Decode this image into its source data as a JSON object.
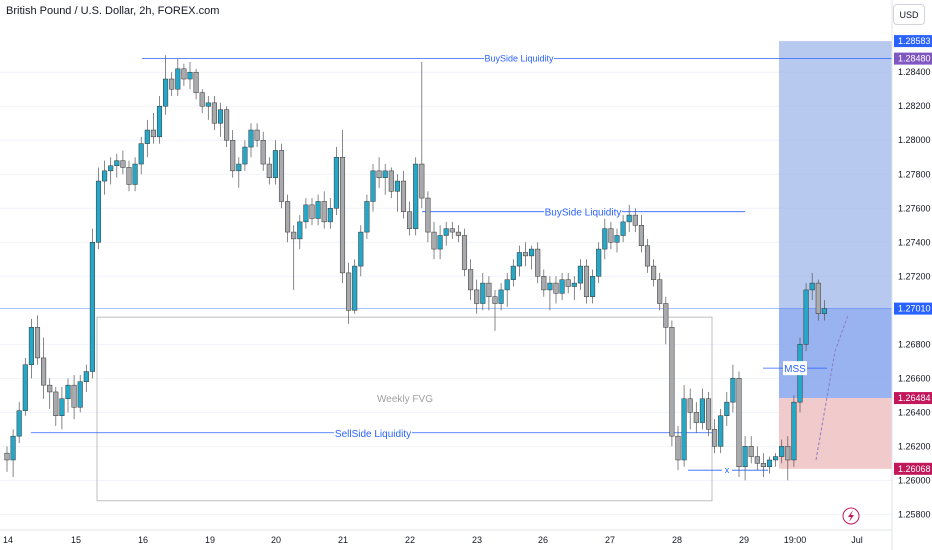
{
  "header": {
    "title": "British Pound / U.S. Dollar, 2h, FOREX.com",
    "currency_button": "USD"
  },
  "colors": {
    "up": "#26a7c7",
    "down": "#a9aaad",
    "wick": "#555555",
    "annotation": "#2962ff",
    "target_zone": "#9fb7ea",
    "stop_zone": "#efc4c6",
    "gap_box": "#b0b0b0"
  },
  "chart_data": {
    "type": "candlestick",
    "ylim": [
      1.2572,
      1.2866
    ],
    "x_ticks": [
      "14",
      "15",
      "16",
      "19",
      "20",
      "21",
      "22",
      "23",
      "26",
      "27",
      "28",
      "29",
      "19:00",
      "Jul"
    ],
    "y_ticks": [
      "1.28400",
      "1.28200",
      "1.28000",
      "1.27800",
      "1.27600",
      "1.27400",
      "1.27200",
      "1.26800",
      "1.26600",
      "1.26400",
      "1.26200",
      "1.26000",
      "1.25800"
    ],
    "price_labels": [
      {
        "text": "1.28583",
        "value": 1.28583,
        "color": "#2962ff"
      },
      {
        "text": "1.28480",
        "value": 1.2848,
        "color": "#7e57c2"
      },
      {
        "text": "1.27010",
        "value": 1.2701,
        "color": "#2962ff"
      },
      {
        "text": "1.26484",
        "value": 1.26484,
        "color": "#c2185b"
      },
      {
        "text": "1.26068",
        "value": 1.26068,
        "color": "#c2185b"
      }
    ],
    "annotations": [
      {
        "text": "BuySide Liquidity",
        "level": 1.2848
      },
      {
        "text": "BuySide Liquidity",
        "level": 1.2758
      },
      {
        "text": "SellSide Liquidity",
        "level": 1.2628
      },
      {
        "text": "Weekly FVG",
        "low": 1.2588,
        "high": 1.2696
      },
      {
        "text": "MSS",
        "level": 1.2666
      },
      {
        "text": "x",
        "level": 1.2606
      }
    ],
    "position": {
      "entry": 1.26484,
      "target": 1.28583,
      "stop": 1.26068,
      "current": 1.2701
    },
    "candles": [
      [
        1.2616,
        1.262,
        1.2605,
        1.2612
      ],
      [
        1.2612,
        1.263,
        1.2602,
        1.2626
      ],
      [
        1.2626,
        1.2646,
        1.2622,
        1.2641
      ],
      [
        1.2641,
        1.2672,
        1.2638,
        1.2668
      ],
      [
        1.2668,
        1.2695,
        1.266,
        1.269
      ],
      [
        1.269,
        1.2697,
        1.2668,
        1.2672
      ],
      [
        1.2672,
        1.2684,
        1.2648,
        1.2656
      ],
      [
        1.2656,
        1.266,
        1.2642,
        1.2652
      ],
      [
        1.2652,
        1.2655,
        1.2632,
        1.2638
      ],
      [
        1.2638,
        1.2655,
        1.263,
        1.2648
      ],
      [
        1.2648,
        1.266,
        1.264,
        1.2656
      ],
      [
        1.2656,
        1.2662,
        1.2636,
        1.2643
      ],
      [
        1.2643,
        1.2662,
        1.264,
        1.2658
      ],
      [
        1.2658,
        1.2668,
        1.2652,
        1.2664
      ],
      [
        1.2664,
        1.2748,
        1.266,
        1.274
      ],
      [
        1.274,
        1.2784,
        1.2736,
        1.2776
      ],
      [
        1.2776,
        1.2788,
        1.2768,
        1.2782
      ],
      [
        1.2782,
        1.279,
        1.2774,
        1.2785
      ],
      [
        1.2785,
        1.2792,
        1.2778,
        1.2788
      ],
      [
        1.2788,
        1.2794,
        1.278,
        1.2784
      ],
      [
        1.2784,
        1.2788,
        1.277,
        1.2774
      ],
      [
        1.2774,
        1.279,
        1.277,
        1.2786
      ],
      [
        1.2786,
        1.2802,
        1.278,
        1.2798
      ],
      [
        1.2798,
        1.2812,
        1.279,
        1.2806
      ],
      [
        1.2806,
        1.2816,
        1.2798,
        1.2802
      ],
      [
        1.2802,
        1.2826,
        1.2798,
        1.282
      ],
      [
        1.282,
        1.285,
        1.2815,
        1.2836
      ],
      [
        1.2836,
        1.284,
        1.2826,
        1.283
      ],
      [
        1.283,
        1.2848,
        1.2826,
        1.2842
      ],
      [
        1.2842,
        1.2845,
        1.2832,
        1.2836
      ],
      [
        1.2836,
        1.2846,
        1.283,
        1.284
      ],
      [
        1.284,
        1.2842,
        1.2824,
        1.2828
      ],
      [
        1.2828,
        1.283,
        1.2816,
        1.282
      ],
      [
        1.282,
        1.2826,
        1.2812,
        1.2822
      ],
      [
        1.2822,
        1.2826,
        1.2806,
        1.281
      ],
      [
        1.281,
        1.2822,
        1.2802,
        1.2818
      ],
      [
        1.2818,
        1.282,
        1.2796,
        1.28
      ],
      [
        1.28,
        1.2806,
        1.2778,
        1.2782
      ],
      [
        1.2782,
        1.279,
        1.2772,
        1.2786
      ],
      [
        1.2786,
        1.28,
        1.2782,
        1.2796
      ],
      [
        1.2796,
        1.281,
        1.279,
        1.2806
      ],
      [
        1.2806,
        1.281,
        1.2796,
        1.28
      ],
      [
        1.28,
        1.2805,
        1.2782,
        1.2786
      ],
      [
        1.2786,
        1.279,
        1.2774,
        1.2778
      ],
      [
        1.2778,
        1.28,
        1.2774,
        1.2794
      ],
      [
        1.2794,
        1.2798,
        1.276,
        1.2764
      ],
      [
        1.2764,
        1.2768,
        1.274,
        1.2746
      ],
      [
        1.2746,
        1.275,
        1.2712,
        1.2742
      ],
      [
        1.2742,
        1.2756,
        1.2736,
        1.2752
      ],
      [
        1.2752,
        1.2766,
        1.2748,
        1.2762
      ],
      [
        1.2762,
        1.2766,
        1.275,
        1.2754
      ],
      [
        1.2754,
        1.2768,
        1.275,
        1.2764
      ],
      [
        1.2764,
        1.277,
        1.2748,
        1.2752
      ],
      [
        1.2752,
        1.2766,
        1.2748,
        1.276
      ],
      [
        1.276,
        1.2796,
        1.2756,
        1.279
      ],
      [
        1.279,
        1.2806,
        1.2716,
        1.2722
      ],
      [
        1.2722,
        1.2728,
        1.2692,
        1.27
      ],
      [
        1.27,
        1.273,
        1.2698,
        1.2726
      ],
      [
        1.2726,
        1.275,
        1.272,
        1.2746
      ],
      [
        1.2746,
        1.2768,
        1.2742,
        1.2764
      ],
      [
        1.2764,
        1.2786,
        1.2758,
        1.2782
      ],
      [
        1.2782,
        1.279,
        1.2772,
        1.2778
      ],
      [
        1.2778,
        1.2786,
        1.2768,
        1.2782
      ],
      [
        1.2782,
        1.2784,
        1.2766,
        1.277
      ],
      [
        1.277,
        1.278,
        1.2758,
        1.2776
      ],
      [
        1.2776,
        1.2782,
        1.2754,
        1.2758
      ],
      [
        1.2758,
        1.2764,
        1.2744,
        1.2748
      ],
      [
        1.2748,
        1.279,
        1.2744,
        1.2786
      ],
      [
        1.2786,
        1.2846,
        1.276,
        1.2766
      ],
      [
        1.2766,
        1.277,
        1.274,
        1.2746
      ],
      [
        1.2746,
        1.2752,
        1.273,
        1.2736
      ],
      [
        1.2736,
        1.275,
        1.273,
        1.2744
      ],
      [
        1.2744,
        1.2752,
        1.2738,
        1.2748
      ],
      [
        1.2748,
        1.2752,
        1.2742,
        1.2746
      ],
      [
        1.2746,
        1.275,
        1.274,
        1.2744
      ],
      [
        1.2744,
        1.2748,
        1.272,
        1.2724
      ],
      [
        1.2724,
        1.273,
        1.2706,
        1.2712
      ],
      [
        1.2712,
        1.2718,
        1.2698,
        1.2704
      ],
      [
        1.2704,
        1.2722,
        1.27,
        1.2716
      ],
      [
        1.2716,
        1.272,
        1.27,
        1.2708
      ],
      [
        1.2708,
        1.2712,
        1.2688,
        1.2704
      ],
      [
        1.2704,
        1.2716,
        1.27,
        1.2712
      ],
      [
        1.2712,
        1.2722,
        1.2702,
        1.2718
      ],
      [
        1.2718,
        1.273,
        1.2714,
        1.2726
      ],
      [
        1.2726,
        1.2738,
        1.272,
        1.2734
      ],
      [
        1.2734,
        1.274,
        1.2726,
        1.2732
      ],
      [
        1.2732,
        1.2738,
        1.2724,
        1.2736
      ],
      [
        1.2736,
        1.274,
        1.2716,
        1.272
      ],
      [
        1.272,
        1.2724,
        1.2708,
        1.2712
      ],
      [
        1.2712,
        1.272,
        1.27,
        1.2716
      ],
      [
        1.2716,
        1.272,
        1.2704,
        1.271
      ],
      [
        1.271,
        1.2722,
        1.2706,
        1.2718
      ],
      [
        1.2718,
        1.2722,
        1.271,
        1.2714
      ],
      [
        1.2714,
        1.272,
        1.2706,
        1.2716
      ],
      [
        1.2716,
        1.273,
        1.2712,
        1.2726
      ],
      [
        1.2726,
        1.273,
        1.2704,
        1.2708
      ],
      [
        1.2708,
        1.2724,
        1.2704,
        1.272
      ],
      [
        1.272,
        1.274,
        1.2716,
        1.2736
      ],
      [
        1.2736,
        1.2756,
        1.273,
        1.2748
      ],
      [
        1.2748,
        1.2752,
        1.2736,
        1.274
      ],
      [
        1.274,
        1.2748,
        1.2734,
        1.2744
      ],
      [
        1.2744,
        1.2756,
        1.274,
        1.2752
      ],
      [
        1.2752,
        1.2762,
        1.2746,
        1.2756
      ],
      [
        1.2756,
        1.276,
        1.2746,
        1.275
      ],
      [
        1.275,
        1.2756,
        1.2734,
        1.2738
      ],
      [
        1.2738,
        1.2742,
        1.2722,
        1.2726
      ],
      [
        1.2726,
        1.273,
        1.2714,
        1.2718
      ],
      [
        1.2718,
        1.2722,
        1.27,
        1.2704
      ],
      [
        1.2704,
        1.2708,
        1.268,
        1.269
      ],
      [
        1.269,
        1.2694,
        1.262,
        1.2626
      ],
      [
        1.2626,
        1.2632,
        1.2606,
        1.2612
      ],
      [
        1.2612,
        1.2656,
        1.2608,
        1.2648
      ],
      [
        1.2648,
        1.2654,
        1.263,
        1.264
      ],
      [
        1.264,
        1.2646,
        1.2628,
        1.2634
      ],
      [
        1.2634,
        1.2654,
        1.263,
        1.2648
      ],
      [
        1.2648,
        1.2652,
        1.2626,
        1.263
      ],
      [
        1.263,
        1.2636,
        1.2616,
        1.262
      ],
      [
        1.262,
        1.2642,
        1.2616,
        1.2638
      ],
      [
        1.2638,
        1.2652,
        1.2632,
        1.2646
      ],
      [
        1.2646,
        1.2668,
        1.264,
        1.266
      ],
      [
        1.266,
        1.2664,
        1.2602,
        1.2608
      ],
      [
        1.2608,
        1.2626,
        1.26,
        1.262
      ],
      [
        1.262,
        1.2626,
        1.261,
        1.2614
      ],
      [
        1.2614,
        1.262,
        1.2606,
        1.261
      ],
      [
        1.261,
        1.2616,
        1.2602,
        1.2608
      ],
      [
        1.2608,
        1.2614,
        1.2604,
        1.2612
      ],
      [
        1.2612,
        1.2616,
        1.2608,
        1.2614
      ],
      [
        1.2614,
        1.2624,
        1.261,
        1.262
      ],
      [
        1.262,
        1.2626,
        1.26,
        1.2612
      ],
      [
        1.2612,
        1.265,
        1.2608,
        1.2646
      ],
      [
        1.2646,
        1.2684,
        1.264,
        1.268
      ],
      [
        1.268,
        1.2716,
        1.2676,
        1.2712
      ],
      [
        1.2712,
        1.2722,
        1.2706,
        1.2716
      ],
      [
        1.2716,
        1.2718,
        1.2694,
        1.2698
      ],
      [
        1.2698,
        1.2706,
        1.2694,
        1.2701
      ]
    ]
  }
}
